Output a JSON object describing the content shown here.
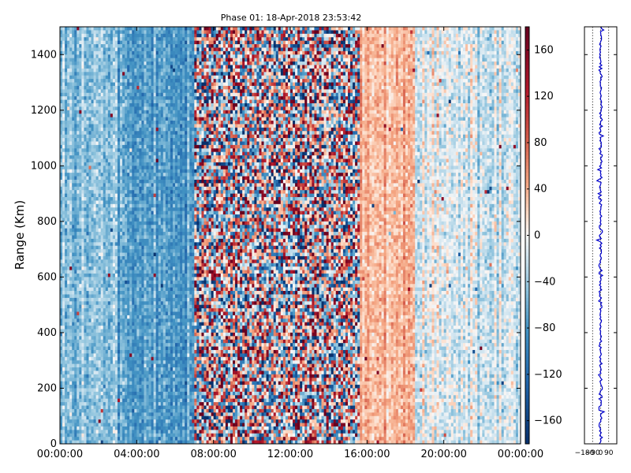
{
  "chart_data": [
    {
      "type": "heatmap",
      "title": "Phase 01: 18-Apr-2018 23:53:42",
      "ylabel": "Range (Km)",
      "xlabel": "",
      "x_ticks": [
        "00:00:00",
        "04:00:00",
        "08:00:00",
        "12:00:00",
        "16:00:00",
        "20:00:00",
        "00:00:00"
      ],
      "xlim_hours": [
        0,
        24
      ],
      "y_ticks": [
        0,
        200,
        400,
        600,
        800,
        1000,
        1200,
        1400
      ],
      "ylim": [
        0,
        1500
      ],
      "colorbar": {
        "ticks": [
          160,
          120,
          80,
          40,
          0,
          -40,
          -80,
          -120,
          -160
        ],
        "range": [
          -180,
          180
        ],
        "colormap": "RdBu_r",
        "low_color": "#08306b",
        "mid_color": "#f7f7f7",
        "high_color": "#67000d"
      },
      "profile": {
        "hour_bands": [
          {
            "from": 0,
            "to": 3,
            "mean": -50,
            "noise": 25
          },
          {
            "from": 3,
            "to": 7,
            "mean": -75,
            "noise": 25
          },
          {
            "from": 7,
            "to": 15.6,
            "mean": 0,
            "noise": 150
          },
          {
            "from": 15.6,
            "to": 18.5,
            "mean": 35,
            "noise": 20
          },
          {
            "from": 18.5,
            "to": 24,
            "mean": -15,
            "noise": 25
          }
        ]
      }
    },
    {
      "type": "line",
      "title": "",
      "x_ticks": [
        "−180",
        "−90",
        "0",
        "90"
      ],
      "xlim": [
        -180,
        180
      ],
      "ylim": [
        0,
        1500
      ],
      "gridlines_x": [
        -90,
        0,
        90
      ],
      "line_color": "#0000cc",
      "mean": 0,
      "spread": 15
    }
  ]
}
